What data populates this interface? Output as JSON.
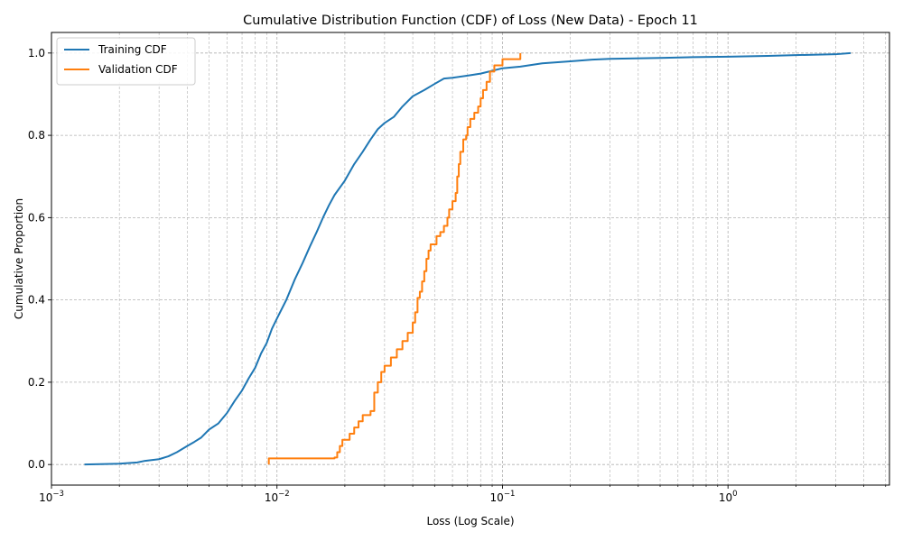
{
  "chart_data": {
    "type": "line",
    "title": "Cumulative Distribution Function (CDF) of Loss (New Data) - Epoch 11",
    "xlabel": "Loss (Log Scale)",
    "ylabel": "Cumulative Proportion",
    "x_scale": "log",
    "xlim": [
      0.001,
      5.2
    ],
    "ylim": [
      -0.05,
      1.05
    ],
    "x_ticks": [
      {
        "value": 0.001,
        "base": "10",
        "exp": "−3"
      },
      {
        "value": 0.01,
        "base": "10",
        "exp": "−2"
      },
      {
        "value": 0.1,
        "base": "10",
        "exp": "−1"
      },
      {
        "value": 1,
        "base": "10",
        "exp": "0"
      }
    ],
    "y_ticks": [
      0.0,
      0.2,
      0.4,
      0.6,
      0.8,
      1.0
    ],
    "y_tick_labels": [
      "0.0",
      "0.2",
      "0.4",
      "0.6",
      "0.8",
      "1.0"
    ],
    "grid": true,
    "legend_position": "top-left",
    "series": [
      {
        "name": "Training CDF",
        "color": "#1f77b4",
        "style": "smooth",
        "points": [
          [
            0.0014,
            0.0
          ],
          [
            0.002,
            0.002
          ],
          [
            0.0024,
            0.005
          ],
          [
            0.0026,
            0.009
          ],
          [
            0.003,
            0.013
          ],
          [
            0.0033,
            0.02
          ],
          [
            0.0036,
            0.03
          ],
          [
            0.004,
            0.045
          ],
          [
            0.0043,
            0.055
          ],
          [
            0.0046,
            0.065
          ],
          [
            0.005,
            0.085
          ],
          [
            0.0055,
            0.1
          ],
          [
            0.006,
            0.125
          ],
          [
            0.0065,
            0.155
          ],
          [
            0.007,
            0.18
          ],
          [
            0.0075,
            0.21
          ],
          [
            0.008,
            0.235
          ],
          [
            0.0085,
            0.27
          ],
          [
            0.009,
            0.295
          ],
          [
            0.0095,
            0.33
          ],
          [
            0.01,
            0.355
          ],
          [
            0.011,
            0.4
          ],
          [
            0.012,
            0.45
          ],
          [
            0.013,
            0.49
          ],
          [
            0.014,
            0.53
          ],
          [
            0.015,
            0.565
          ],
          [
            0.016,
            0.6
          ],
          [
            0.017,
            0.63
          ],
          [
            0.018,
            0.655
          ],
          [
            0.02,
            0.69
          ],
          [
            0.022,
            0.73
          ],
          [
            0.024,
            0.76
          ],
          [
            0.026,
            0.79
          ],
          [
            0.028,
            0.815
          ],
          [
            0.03,
            0.83
          ],
          [
            0.033,
            0.845
          ],
          [
            0.036,
            0.87
          ],
          [
            0.04,
            0.895
          ],
          [
            0.045,
            0.91
          ],
          [
            0.05,
            0.925
          ],
          [
            0.055,
            0.938
          ],
          [
            0.06,
            0.94
          ],
          [
            0.07,
            0.945
          ],
          [
            0.08,
            0.95
          ],
          [
            0.1,
            0.963
          ],
          [
            0.12,
            0.967
          ],
          [
            0.15,
            0.975
          ],
          [
            0.2,
            0.98
          ],
          [
            0.25,
            0.984
          ],
          [
            0.3,
            0.986
          ],
          [
            0.5,
            0.988
          ],
          [
            0.7,
            0.99
          ],
          [
            1.0,
            0.991
          ],
          [
            1.5,
            0.993
          ],
          [
            2.0,
            0.995
          ],
          [
            3.0,
            0.997
          ],
          [
            3.5,
            1.0
          ]
        ]
      },
      {
        "name": "Validation CDF",
        "color": "#ff7f0e",
        "style": "step",
        "points": [
          [
            0.0092,
            0.0
          ],
          [
            0.0092,
            0.015
          ],
          [
            0.018,
            0.017
          ],
          [
            0.0185,
            0.03
          ],
          [
            0.019,
            0.045
          ],
          [
            0.0195,
            0.06
          ],
          [
            0.021,
            0.075
          ],
          [
            0.022,
            0.09
          ],
          [
            0.023,
            0.105
          ],
          [
            0.024,
            0.12
          ],
          [
            0.026,
            0.13
          ],
          [
            0.027,
            0.175
          ],
          [
            0.028,
            0.2
          ],
          [
            0.029,
            0.225
          ],
          [
            0.03,
            0.24
          ],
          [
            0.032,
            0.26
          ],
          [
            0.034,
            0.28
          ],
          [
            0.036,
            0.3
          ],
          [
            0.038,
            0.32
          ],
          [
            0.04,
            0.345
          ],
          [
            0.041,
            0.37
          ],
          [
            0.042,
            0.405
          ],
          [
            0.043,
            0.42
          ],
          [
            0.044,
            0.445
          ],
          [
            0.045,
            0.47
          ],
          [
            0.046,
            0.5
          ],
          [
            0.047,
            0.52
          ],
          [
            0.048,
            0.535
          ],
          [
            0.051,
            0.555
          ],
          [
            0.053,
            0.565
          ],
          [
            0.055,
            0.58
          ],
          [
            0.057,
            0.6
          ],
          [
            0.058,
            0.62
          ],
          [
            0.06,
            0.64
          ],
          [
            0.062,
            0.66
          ],
          [
            0.063,
            0.7
          ],
          [
            0.064,
            0.73
          ],
          [
            0.065,
            0.76
          ],
          [
            0.067,
            0.79
          ],
          [
            0.069,
            0.8
          ],
          [
            0.07,
            0.82
          ],
          [
            0.072,
            0.84
          ],
          [
            0.075,
            0.855
          ],
          [
            0.078,
            0.87
          ],
          [
            0.08,
            0.89
          ],
          [
            0.082,
            0.91
          ],
          [
            0.085,
            0.93
          ],
          [
            0.088,
            0.955
          ],
          [
            0.092,
            0.97
          ],
          [
            0.1,
            0.985
          ],
          [
            0.12,
            1.0
          ]
        ]
      }
    ]
  }
}
